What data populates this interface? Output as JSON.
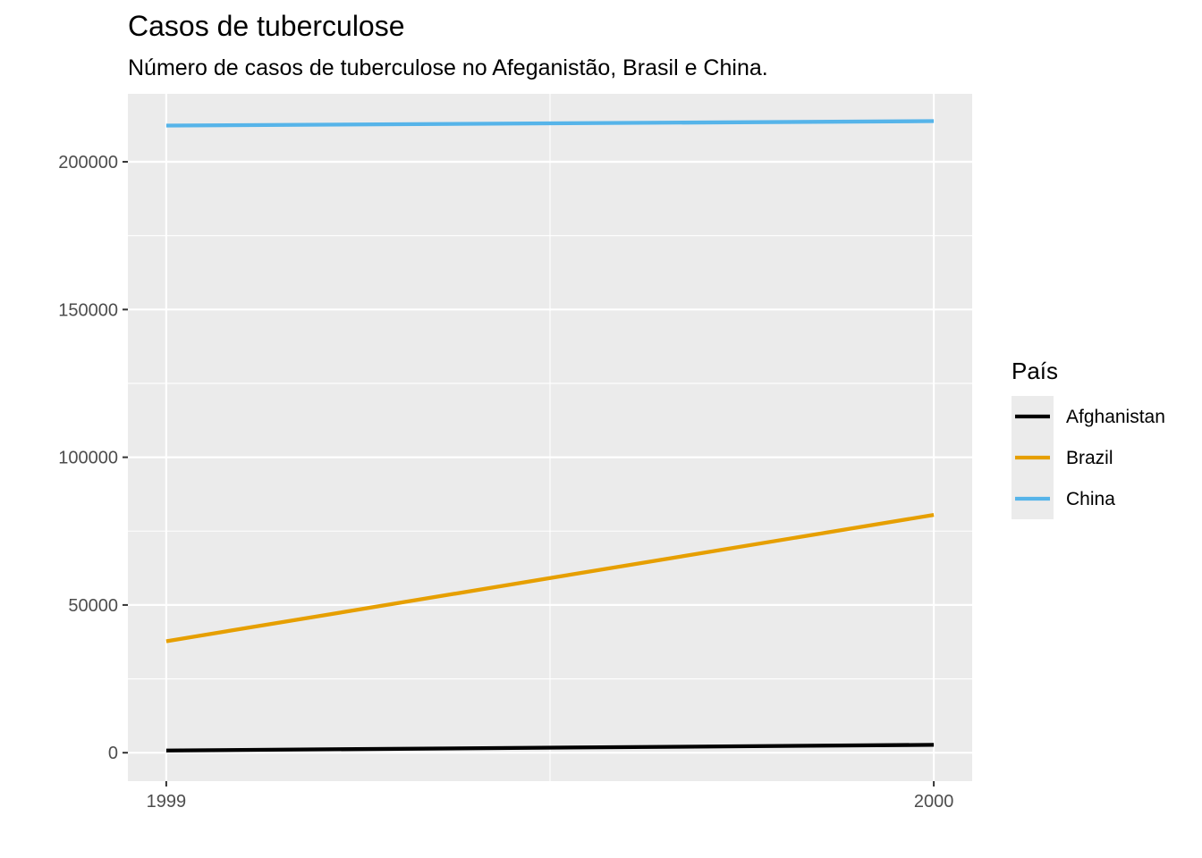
{
  "chart_data": {
    "type": "line",
    "title": "Casos de tuberculose",
    "subtitle": "Número de casos de tuberculose no Afeganistão, Brasil e China.",
    "xlabel": "",
    "ylabel": "",
    "x": [
      1999,
      2000
    ],
    "x_ticks": [
      {
        "value": 1999,
        "label": "1999"
      },
      {
        "value": 2000,
        "label": "2000"
      }
    ],
    "y_ticks": [
      {
        "value": 0,
        "label": "0"
      },
      {
        "value": 50000,
        "label": "50000"
      },
      {
        "value": 100000,
        "label": "100000"
      },
      {
        "value": 150000,
        "label": "150000"
      },
      {
        "value": 200000,
        "label": "200000"
      }
    ],
    "xlim": [
      1998.95,
      2000.05
    ],
    "ylim": [
      -9620,
      223000
    ],
    "grid": true,
    "legend": {
      "title": "País",
      "position": "right"
    },
    "series": [
      {
        "name": "Afghanistan",
        "color": "#000000",
        "values": [
          745,
          2666
        ]
      },
      {
        "name": "Brazil",
        "color": "#E69F00",
        "values": [
          37737,
          80488
        ]
      },
      {
        "name": "China",
        "color": "#56B4E9",
        "values": [
          212258,
          213766
        ]
      }
    ]
  },
  "colors": {
    "panel_background": "#EBEBEB",
    "grid_line": "#FFFFFF",
    "tick_mark": "#333333"
  }
}
